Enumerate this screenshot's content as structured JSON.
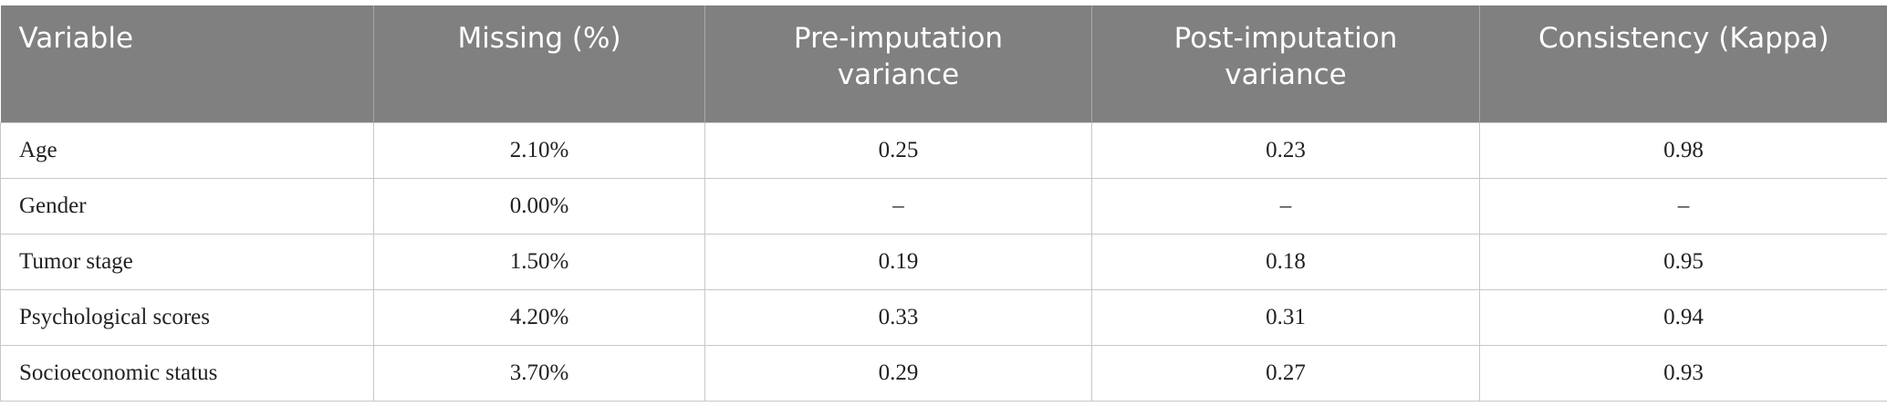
{
  "table": {
    "header": [
      "Variable",
      "Missing (%)",
      "Pre-imputation variance",
      "Post-imputation variance",
      "Consistency (Kappa)"
    ],
    "rows": [
      [
        "Age",
        "2.10%",
        "0.25",
        "0.23",
        "0.98"
      ],
      [
        "Gender",
        "0.00%",
        "–",
        "–",
        "–"
      ],
      [
        "Tumor stage",
        "1.50%",
        "0.19",
        "0.18",
        "0.95"
      ],
      [
        "Psychological scores",
        "4.20%",
        "0.33",
        "0.31",
        "0.94"
      ],
      [
        "Socioeconomic status",
        "3.70%",
        "0.29",
        "0.27",
        "0.93"
      ]
    ]
  }
}
